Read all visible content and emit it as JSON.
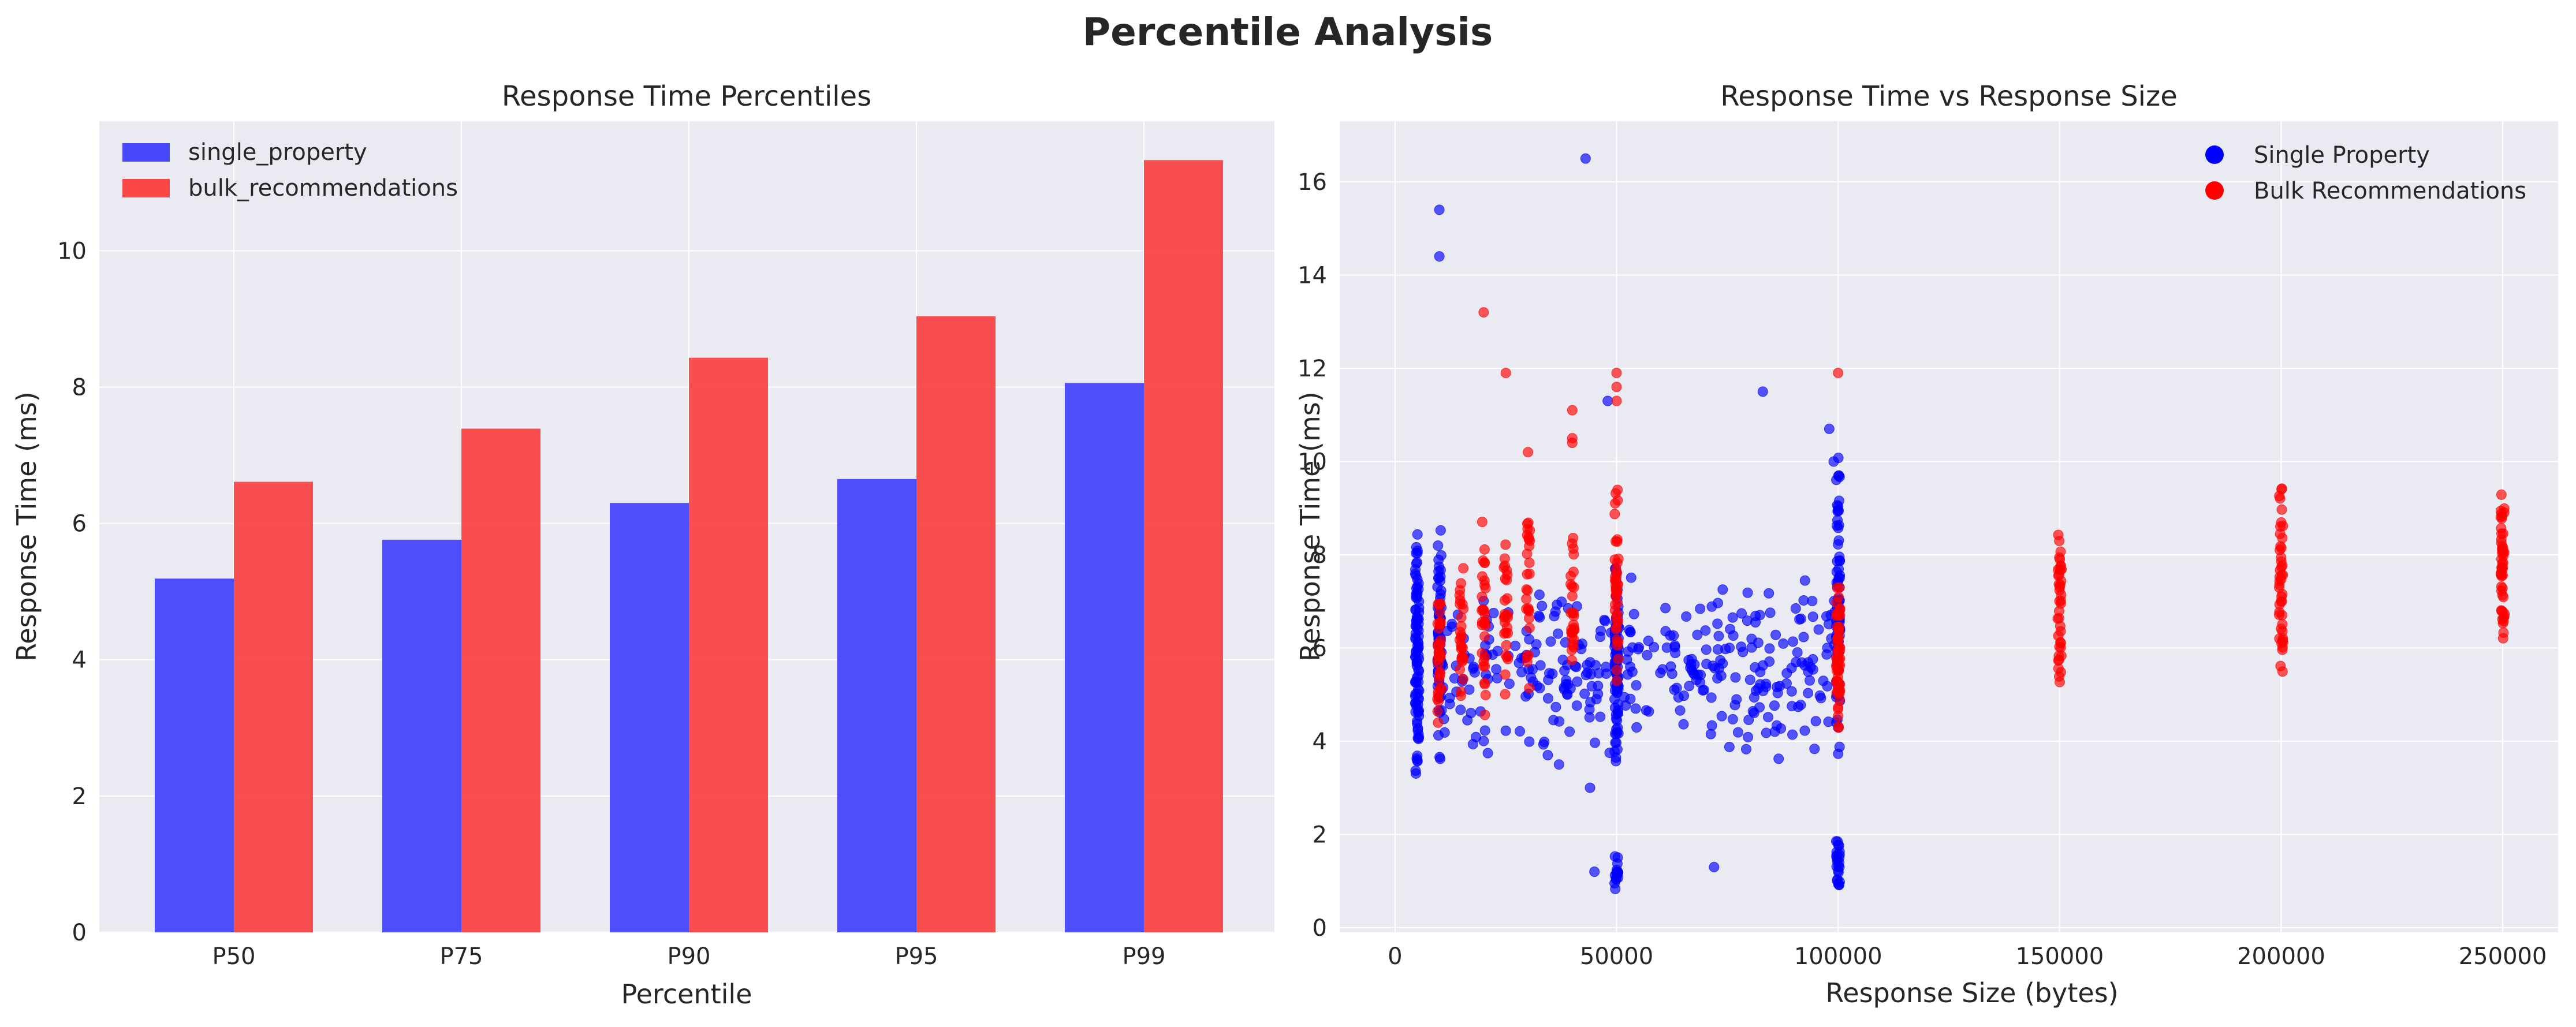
{
  "suptitle": "Percentile Analysis",
  "chart_data": [
    {
      "type": "bar",
      "title": "Response Time Percentiles",
      "xlabel": "Percentile",
      "ylabel": "Response Time (ms)",
      "categories": [
        "P50",
        "P75",
        "P90",
        "P95",
        "P99"
      ],
      "series": [
        {
          "name": "single_property",
          "color": "#4646fa",
          "values": [
            5.19,
            5.76,
            6.3,
            6.65,
            8.06
          ]
        },
        {
          "name": "bulk_recommendations",
          "color": "#fa4646",
          "values": [
            6.61,
            7.39,
            8.43,
            9.04,
            11.33
          ]
        }
      ],
      "ylim": [
        0,
        11.9
      ],
      "yticks": [
        0,
        2,
        4,
        6,
        8,
        10
      ],
      "grid": true,
      "legend": "top-left"
    },
    {
      "type": "scatter",
      "title": "Response Time vs Response Size",
      "xlabel": "Response Size (bytes)",
      "ylabel": "Response Time (ms)",
      "xlim": [
        -12500,
        262500
      ],
      "ylim": [
        -0.1,
        17.3
      ],
      "xticks": [
        0,
        50000,
        100000,
        150000,
        200000,
        250000
      ],
      "yticks": [
        0,
        2,
        4,
        6,
        8,
        10,
        12,
        14,
        16
      ],
      "grid": true,
      "legend": "top-right",
      "series": [
        {
          "name": "Single Property",
          "color": "#0000ff",
          "clusters": [
            {
              "x": 5000,
              "y_range": [
                3.0,
                9.0
              ],
              "count": 95
            },
            {
              "x": 10000,
              "y_range": [
                3.2,
                8.8
              ],
              "count": 60
            },
            {
              "x": 50000,
              "y_range": [
                3.3,
                8.2
              ],
              "count": 85
            },
            {
              "x": 100000,
              "y_range": [
                3.5,
                10.6
              ],
              "count": 75
            },
            {
              "x": 50000,
              "y_range": [
                0.7,
                1.6
              ],
              "count": 18
            },
            {
              "x": 100000,
              "y_range": [
                0.8,
                2.0
              ],
              "count": 24
            }
          ],
          "band": {
            "x_range": [
              10000,
              100000
            ],
            "y_range": [
              3.5,
              7.6
            ],
            "count": 330
          },
          "points": [
            [
              10000,
              15.4
            ],
            [
              10000,
              14.4
            ],
            [
              43000,
              16.5
            ],
            [
              83000,
              11.5
            ],
            [
              48000,
              11.3
            ],
            [
              72000,
              1.3
            ],
            [
              45000,
              1.2
            ],
            [
              37000,
              3.5
            ],
            [
              44000,
              3.0
            ],
            [
              98000,
              10.7
            ],
            [
              99000,
              10.0
            ]
          ]
        },
        {
          "name": "Bulk Recommendations",
          "color": "#ff0000",
          "clusters": [
            {
              "x": 10000,
              "y_range": [
                4.3,
                7.3
              ],
              "count": 35
            },
            {
              "x": 15000,
              "y_range": [
                4.3,
                8.0
              ],
              "count": 28
            },
            {
              "x": 20000,
              "y_range": [
                4.4,
                8.8
              ],
              "count": 30
            },
            {
              "x": 25000,
              "y_range": [
                4.5,
                8.6
              ],
              "count": 26
            },
            {
              "x": 30000,
              "y_range": [
                4.6,
                9.6
              ],
              "count": 26
            },
            {
              "x": 40000,
              "y_range": [
                5.0,
                8.5
              ],
              "count": 28
            },
            {
              "x": 50000,
              "y_range": [
                4.8,
                9.7
              ],
              "count": 40
            },
            {
              "x": 100000,
              "y_range": [
                4.1,
                7.5
              ],
              "count": 60
            },
            {
              "x": 150000,
              "y_range": [
                4.7,
                9.0
              ],
              "count": 40
            },
            {
              "x": 200000,
              "y_range": [
                5.1,
                9.8
              ],
              "count": 45
            },
            {
              "x": 250000,
              "y_range": [
                5.8,
                9.6
              ],
              "count": 50
            }
          ],
          "points": [
            [
              20000,
              13.2
            ],
            [
              25000,
              11.9
            ],
            [
              40000,
              11.1
            ],
            [
              40000,
              10.5
            ],
            [
              50000,
              11.9
            ],
            [
              50000,
              11.6
            ],
            [
              50000,
              11.3
            ],
            [
              100000,
              11.9
            ],
            [
              30000,
              10.2
            ],
            [
              40000,
              10.4
            ]
          ]
        }
      ]
    }
  ]
}
